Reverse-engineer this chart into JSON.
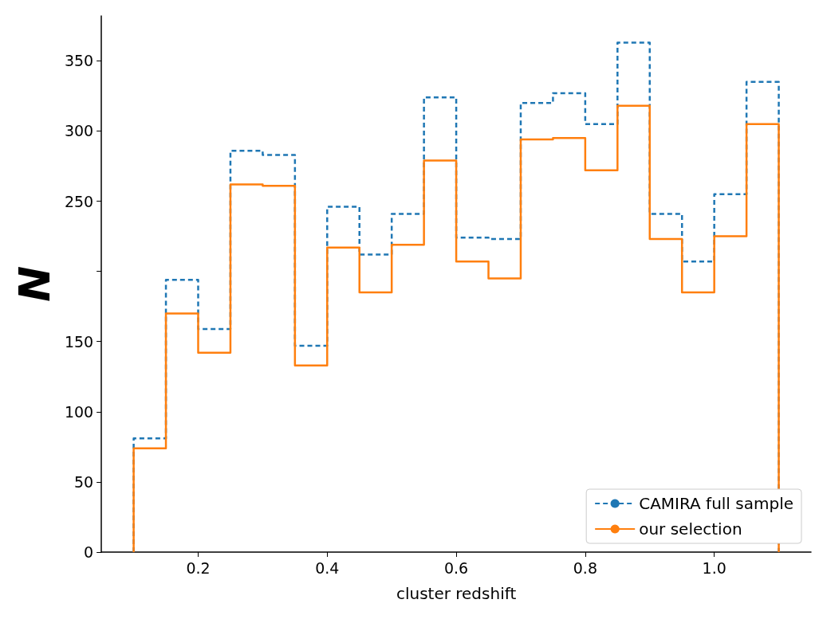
{
  "chart_data": {
    "type": "histogram",
    "xlabel": "cluster redshift",
    "ylabel": "N",
    "bins": [
      0.1,
      0.15,
      0.2,
      0.25,
      0.3,
      0.35,
      0.4,
      0.45,
      0.5,
      0.55,
      0.6,
      0.65,
      0.7,
      0.75,
      0.8,
      0.85,
      0.9,
      0.95,
      1.0,
      1.05,
      1.1
    ],
    "series": [
      {
        "name": "CAMIRA full sample",
        "color": "#1f77b4",
        "line_style": "dashed",
        "values": [
          81,
          194,
          159,
          286,
          283,
          147,
          246,
          212,
          241,
          324,
          224,
          223,
          320,
          327,
          305,
          363,
          241,
          207,
          255,
          335
        ]
      },
      {
        "name": "our selection",
        "color": "#ff7f0e",
        "line_style": "solid",
        "values": [
          74,
          170,
          142,
          262,
          261,
          133,
          217,
          185,
          219,
          279,
          207,
          195,
          294,
          295,
          272,
          318,
          223,
          185,
          225,
          305
        ]
      }
    ],
    "xlim": [
      0.05,
      1.15
    ],
    "xticks": [
      0.2,
      0.4,
      0.6,
      0.8,
      {
        "value": 1.0,
        "label": "1.0"
      }
    ],
    "ylim": [
      0,
      382
    ],
    "yticks": [
      0,
      50,
      100,
      150,
      {
        "value": 200,
        "label": null
      },
      250,
      300,
      350
    ],
    "grid": false,
    "legend": "bottom right",
    "marker": "none"
  }
}
